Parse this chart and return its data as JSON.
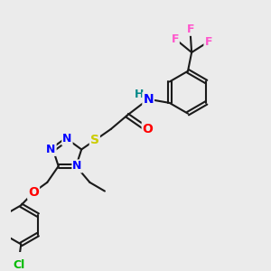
{
  "background_color": "#ebebeb",
  "bond_color": "#1a1a1a",
  "atom_colors": {
    "N": "#0000ff",
    "O": "#ff0000",
    "S": "#cccc00",
    "Cl": "#00bb00",
    "F": "#ff55cc",
    "H": "#008888",
    "C": "#1a1a1a"
  },
  "figsize": [
    3.0,
    3.0
  ],
  "dpi": 100
}
